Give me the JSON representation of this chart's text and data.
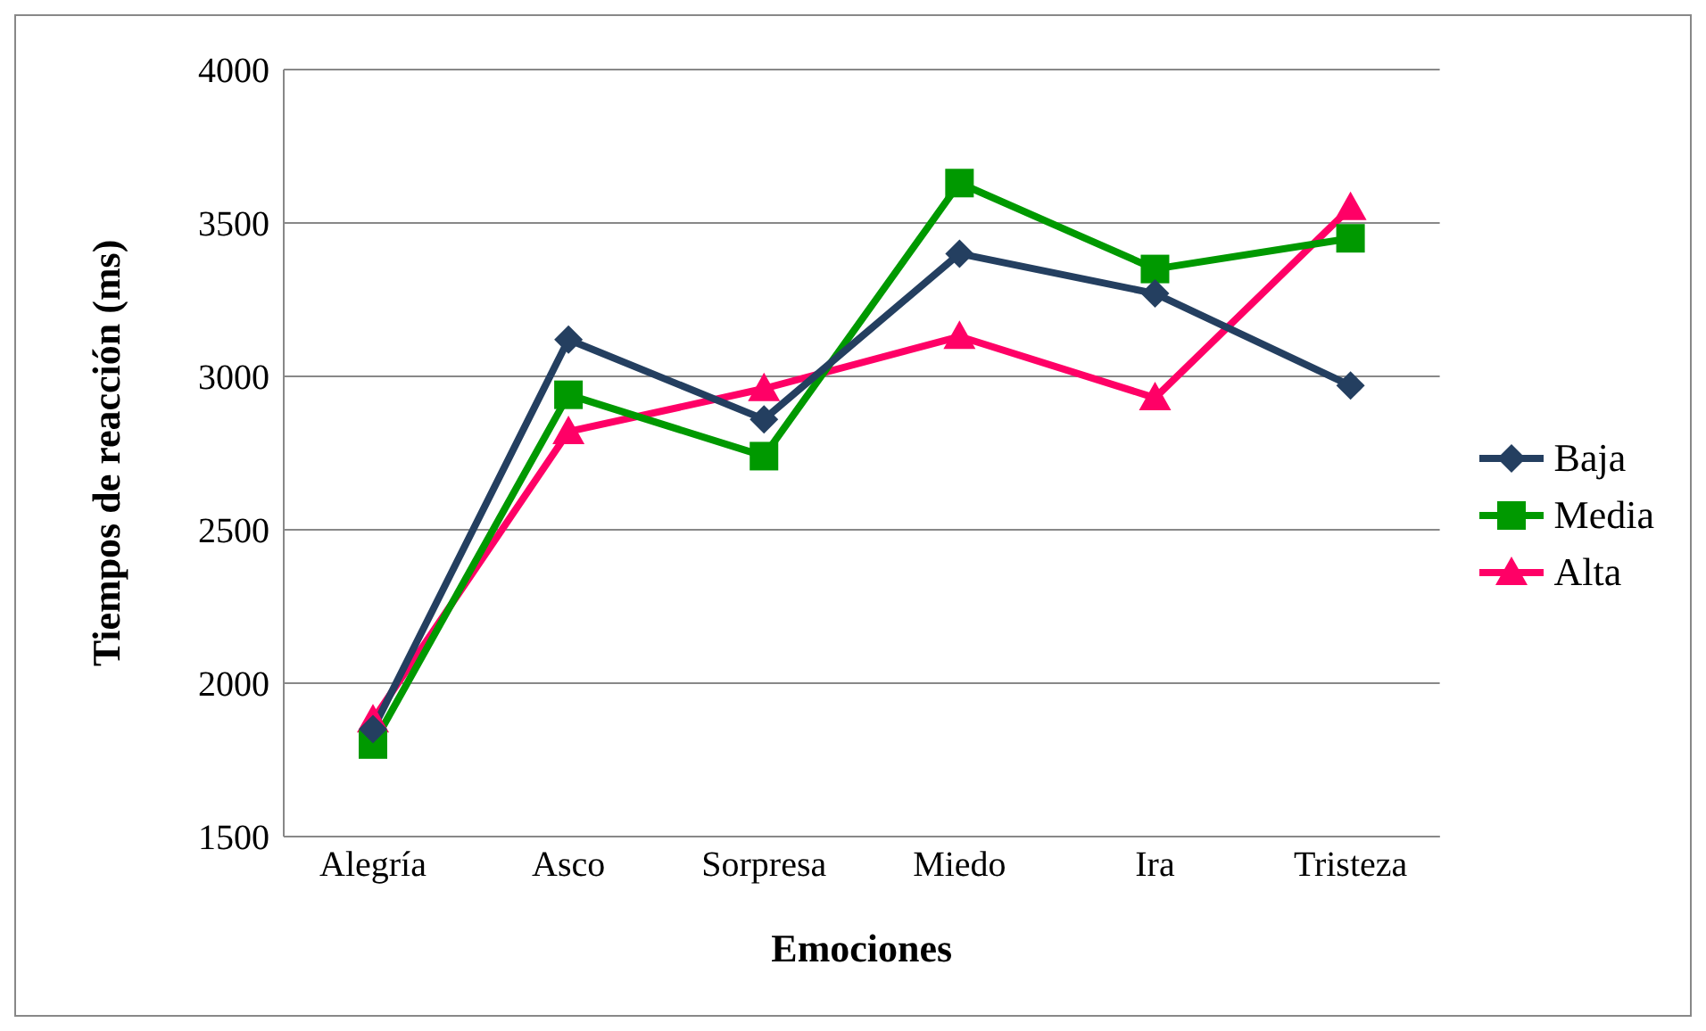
{
  "chart_data": {
    "type": "line",
    "xlabel": "Emociones",
    "ylabel": "Tiempos de reacción (ms)",
    "categories": [
      "Alegría",
      "Asco",
      "Sorpresa",
      "Miedo",
      "Ira",
      "Tristeza"
    ],
    "series": [
      {
        "name": "Baja",
        "color": "#243f60",
        "marker": "diamond",
        "values": [
          1850,
          3120,
          2860,
          3400,
          3270,
          2970
        ]
      },
      {
        "name": "Media",
        "color": "#009900",
        "marker": "square",
        "values": [
          1800,
          2940,
          2740,
          3630,
          3350,
          3450
        ]
      },
      {
        "name": "Alta",
        "color": "#ff0066",
        "marker": "triangle",
        "values": [
          1880,
          2820,
          2960,
          3130,
          2930,
          3550
        ]
      }
    ],
    "ylim": [
      1500,
      4000
    ],
    "yticks": [
      1500,
      2000,
      2500,
      3000,
      3500,
      4000
    ],
    "grid": "y",
    "legend": "right"
  }
}
